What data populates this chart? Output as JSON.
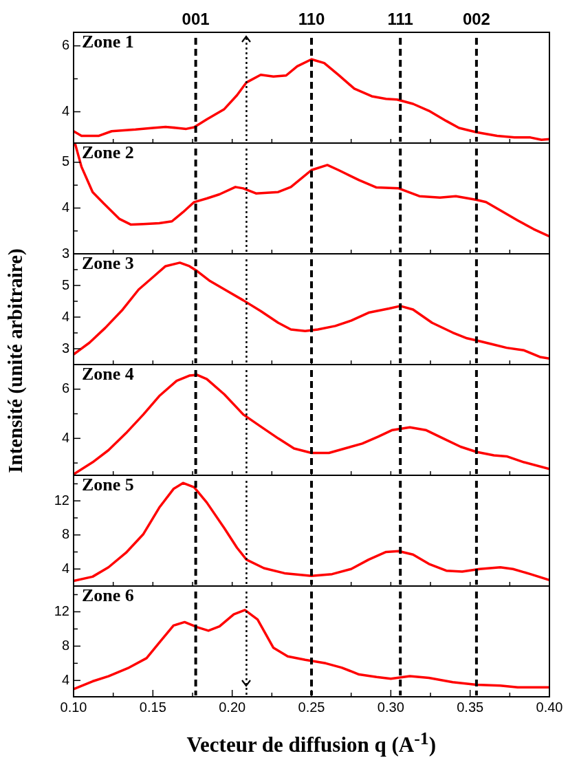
{
  "chart_data": [
    {
      "type": "line",
      "annotations": [
        "Zone 1",
        "001",
        "110",
        "111",
        "002"
      ],
      "tick_labels": "y",
      "xlim": [
        0.1,
        0.4
      ],
      "xticks": [
        {
          "value": 0.1,
          "label": null
        },
        {
          "value": 0.125,
          "label": null
        },
        {
          "value": 0.15,
          "label": null
        },
        {
          "value": 0.175,
          "label": null
        },
        {
          "value": 0.2,
          "label": null
        },
        {
          "value": 0.225,
          "label": null
        },
        {
          "value": 0.25,
          "label": null
        },
        {
          "value": 0.275,
          "label": null
        },
        {
          "value": 0.3,
          "label": null
        },
        {
          "value": 0.325,
          "label": null
        },
        {
          "value": 0.35,
          "label": null
        },
        {
          "value": 0.375,
          "label": null
        },
        {
          "value": 0.4,
          "label": null
        }
      ],
      "ylim": [
        3.05,
        6.41
      ],
      "yticks": [
        4,
        {
          "value": 5,
          "label": null
        },
        6
      ],
      "ref_lines": [
        {
          "axis": "x",
          "value": 0.177,
          "color": "#000000",
          "line_style": "dashed"
        },
        {
          "axis": "x",
          "value": 0.25,
          "color": "#000000",
          "line_style": "dashed"
        },
        {
          "axis": "x",
          "value": 0.306,
          "color": "#000000",
          "line_style": "dashed"
        },
        {
          "axis": "x",
          "value": 0.354,
          "color": "#000000",
          "line_style": "dashed"
        },
        {
          "axis": "x",
          "value": 0.209,
          "color": "#000000",
          "line_style": "dotted"
        }
      ],
      "series": [
        {
          "color": "#ff0000",
          "x": [
            0.1,
            0.105,
            0.116,
            0.124,
            0.139,
            0.15,
            0.158,
            0.165,
            0.171,
            0.176,
            0.184,
            0.195,
            0.203,
            0.209,
            0.218,
            0.226,
            0.234,
            0.241,
            0.25,
            0.258,
            0.267,
            0.277,
            0.288,
            0.297,
            0.304,
            0.314,
            0.324,
            0.335,
            0.343,
            0.354,
            0.367,
            0.378,
            0.388,
            0.395,
            0.4
          ],
          "values": [
            3.41,
            3.27,
            3.27,
            3.41,
            3.46,
            3.51,
            3.54,
            3.51,
            3.48,
            3.53,
            3.77,
            4.08,
            4.5,
            4.89,
            5.12,
            5.07,
            5.1,
            5.38,
            5.59,
            5.48,
            5.12,
            4.7,
            4.47,
            4.39,
            4.37,
            4.24,
            4.03,
            3.72,
            3.51,
            3.38,
            3.27,
            3.22,
            3.22,
            3.15,
            3.17
          ]
        }
      ]
    },
    {
      "type": "line",
      "annotations": [
        "Zone 2"
      ],
      "tick_labels": "y",
      "xlim": [
        0.1,
        0.4
      ],
      "xticks": [
        {
          "value": 0.1,
          "label": null
        },
        {
          "value": 0.125,
          "label": null
        },
        {
          "value": 0.15,
          "label": null
        },
        {
          "value": 0.175,
          "label": null
        },
        {
          "value": 0.2,
          "label": null
        },
        {
          "value": 0.225,
          "label": null
        },
        {
          "value": 0.25,
          "label": null
        },
        {
          "value": 0.275,
          "label": null
        },
        {
          "value": 0.3,
          "label": null
        },
        {
          "value": 0.325,
          "label": null
        },
        {
          "value": 0.35,
          "label": null
        },
        {
          "value": 0.375,
          "label": null
        },
        {
          "value": 0.4,
          "label": null
        }
      ],
      "ylim": [
        3,
        5.42
      ],
      "yticks": [
        3,
        {
          "value": 3.5,
          "label": null
        },
        4,
        {
          "value": 4.5,
          "label": null
        },
        5
      ],
      "ref_lines": [
        {
          "axis": "x",
          "value": 0.177,
          "color": "#000000",
          "line_style": "dashed"
        },
        {
          "axis": "x",
          "value": 0.25,
          "color": "#000000",
          "line_style": "dashed"
        },
        {
          "axis": "x",
          "value": 0.306,
          "color": "#000000",
          "line_style": "dashed"
        },
        {
          "axis": "x",
          "value": 0.354,
          "color": "#000000",
          "line_style": "dashed"
        },
        {
          "axis": "x",
          "value": 0.209,
          "color": "#000000",
          "line_style": "dotted"
        }
      ],
      "series": [
        {
          "color": "#ff0000",
          "x": [
            0.101,
            0.105,
            0.112,
            0.119,
            0.129,
            0.136,
            0.144,
            0.154,
            0.162,
            0.169,
            0.176,
            0.184,
            0.192,
            0.202,
            0.207,
            0.215,
            0.229,
            0.237,
            0.25,
            0.26,
            0.267,
            0.28,
            0.291,
            0.305,
            0.318,
            0.331,
            0.341,
            0.354,
            0.36,
            0.369,
            0.38,
            0.39,
            0.4
          ],
          "values": [
            5.4,
            4.9,
            4.35,
            4.1,
            3.76,
            3.64,
            3.65,
            3.67,
            3.71,
            3.91,
            4.13,
            4.21,
            4.3,
            4.46,
            4.43,
            4.32,
            4.35,
            4.46,
            4.83,
            4.94,
            4.83,
            4.61,
            4.45,
            4.43,
            4.26,
            4.23,
            4.26,
            4.18,
            4.13,
            3.95,
            3.73,
            3.54,
            3.38
          ]
        }
      ]
    },
    {
      "type": "line",
      "ylabel": "Intensité (unité arbitraire)",
      "annotations": [
        "Zone 3"
      ],
      "tick_labels": "y",
      "xlim": [
        0.1,
        0.4
      ],
      "xticks": [
        {
          "value": 0.1,
          "label": null
        },
        {
          "value": 0.125,
          "label": null
        },
        {
          "value": 0.15,
          "label": null
        },
        {
          "value": 0.175,
          "label": null
        },
        {
          "value": 0.2,
          "label": null
        },
        {
          "value": 0.225,
          "label": null
        },
        {
          "value": 0.25,
          "label": null
        },
        {
          "value": 0.275,
          "label": null
        },
        {
          "value": 0.3,
          "label": null
        },
        {
          "value": 0.325,
          "label": null
        },
        {
          "value": 0.35,
          "label": null
        },
        {
          "value": 0.375,
          "label": null
        },
        {
          "value": 0.4,
          "label": null
        }
      ],
      "ylim": [
        2.5,
        6
      ],
      "yticks": [
        3,
        {
          "value": 3.5,
          "label": null
        },
        4,
        {
          "value": 4.5,
          "label": null
        },
        5,
        {
          "value": 5.5,
          "label": null
        }
      ],
      "ref_lines": [
        {
          "axis": "x",
          "value": 0.177,
          "color": "#000000",
          "line_style": "dashed"
        },
        {
          "axis": "x",
          "value": 0.25,
          "color": "#000000",
          "line_style": "dashed"
        },
        {
          "axis": "x",
          "value": 0.306,
          "color": "#000000",
          "line_style": "dashed"
        },
        {
          "axis": "x",
          "value": 0.354,
          "color": "#000000",
          "line_style": "dashed"
        },
        {
          "axis": "x",
          "value": 0.209,
          "color": "#000000",
          "line_style": "dotted"
        }
      ],
      "series": [
        {
          "color": "#ff0000",
          "x": [
            0.1,
            0.11,
            0.12,
            0.131,
            0.141,
            0.15,
            0.158,
            0.167,
            0.173,
            0.178,
            0.186,
            0.197,
            0.207,
            0.218,
            0.229,
            0.237,
            0.246,
            0.254,
            0.265,
            0.275,
            0.286,
            0.299,
            0.306,
            0.314,
            0.326,
            0.339,
            0.348,
            0.356,
            0.364,
            0.373,
            0.384,
            0.394,
            0.4
          ],
          "values": [
            2.82,
            3.19,
            3.66,
            4.24,
            4.87,
            5.26,
            5.61,
            5.72,
            5.61,
            5.45,
            5.14,
            4.82,
            4.53,
            4.19,
            3.82,
            3.61,
            3.56,
            3.61,
            3.72,
            3.89,
            4.14,
            4.27,
            4.35,
            4.24,
            3.82,
            3.51,
            3.33,
            3.24,
            3.14,
            3.03,
            2.95,
            2.74,
            2.69
          ]
        }
      ]
    },
    {
      "type": "line",
      "annotations": [
        "Zone 4"
      ],
      "tick_labels": "y",
      "xlim": [
        0.1,
        0.4
      ],
      "xticks": [
        {
          "value": 0.1,
          "label": null
        },
        {
          "value": 0.125,
          "label": null
        },
        {
          "value": 0.15,
          "label": null
        },
        {
          "value": 0.175,
          "label": null
        },
        {
          "value": 0.2,
          "label": null
        },
        {
          "value": 0.225,
          "label": null
        },
        {
          "value": 0.25,
          "label": null
        },
        {
          "value": 0.275,
          "label": null
        },
        {
          "value": 0.3,
          "label": null
        },
        {
          "value": 0.325,
          "label": null
        },
        {
          "value": 0.35,
          "label": null
        },
        {
          "value": 0.375,
          "label": null
        },
        {
          "value": 0.4,
          "label": null
        }
      ],
      "ylim": [
        2.5,
        7
      ],
      "yticks": [
        {
          "value": 3,
          "label": null
        },
        4,
        {
          "value": 5,
          "label": null
        },
        6
      ],
      "ref_lines": [
        {
          "axis": "x",
          "value": 0.177,
          "color": "#000000",
          "line_style": "dashed"
        },
        {
          "axis": "x",
          "value": 0.25,
          "color": "#000000",
          "line_style": "dashed"
        },
        {
          "axis": "x",
          "value": 0.306,
          "color": "#000000",
          "line_style": "dashed"
        },
        {
          "axis": "x",
          "value": 0.354,
          "color": "#000000",
          "line_style": "dashed"
        },
        {
          "axis": "x",
          "value": 0.209,
          "color": "#000000",
          "line_style": "dotted"
        }
      ],
      "series": [
        {
          "color": "#ff0000",
          "x": [
            0.1,
            0.112,
            0.122,
            0.133,
            0.144,
            0.154,
            0.165,
            0.173,
            0.178,
            0.184,
            0.195,
            0.207,
            0.218,
            0.229,
            0.239,
            0.25,
            0.261,
            0.271,
            0.282,
            0.292,
            0.301,
            0.312,
            0.322,
            0.333,
            0.344,
            0.354,
            0.365,
            0.373,
            0.384,
            0.4
          ],
          "values": [
            2.54,
            3.03,
            3.52,
            4.21,
            4.97,
            5.72,
            6.34,
            6.55,
            6.58,
            6.41,
            5.79,
            4.97,
            4.48,
            4,
            3.59,
            3.41,
            3.41,
            3.59,
            3.79,
            4.07,
            4.34,
            4.45,
            4.34,
            4,
            3.66,
            3.45,
            3.31,
            3.27,
            3.03,
            2.76
          ]
        }
      ]
    },
    {
      "type": "line",
      "annotations": [
        "Zone 5"
      ],
      "tick_labels": "y",
      "xlim": [
        0.1,
        0.4
      ],
      "xticks": [
        {
          "value": 0.1,
          "label": null
        },
        {
          "value": 0.125,
          "label": null
        },
        {
          "value": 0.15,
          "label": null
        },
        {
          "value": 0.175,
          "label": null
        },
        {
          "value": 0.2,
          "label": null
        },
        {
          "value": 0.225,
          "label": null
        },
        {
          "value": 0.25,
          "label": null
        },
        {
          "value": 0.275,
          "label": null
        },
        {
          "value": 0.3,
          "label": null
        },
        {
          "value": 0.325,
          "label": null
        },
        {
          "value": 0.35,
          "label": null
        },
        {
          "value": 0.375,
          "label": null
        },
        {
          "value": 0.4,
          "label": null
        }
      ],
      "ylim": [
        2,
        15
      ],
      "yticks": [
        4,
        {
          "value": 6,
          "label": null
        },
        8,
        {
          "value": 10,
          "label": null
        },
        12,
        {
          "value": 14,
          "label": null
        }
      ],
      "ref_lines": [
        {
          "axis": "x",
          "value": 0.177,
          "color": "#000000",
          "line_style": "dashed"
        },
        {
          "axis": "x",
          "value": 0.25,
          "color": "#000000",
          "line_style": "dashed"
        },
        {
          "axis": "x",
          "value": 0.306,
          "color": "#000000",
          "line_style": "dashed"
        },
        {
          "axis": "x",
          "value": 0.354,
          "color": "#000000",
          "line_style": "dashed"
        },
        {
          "axis": "x",
          "value": 0.209,
          "color": "#000000",
          "line_style": "dotted"
        }
      ],
      "series": [
        {
          "color": "#ff0000",
          "x": [
            0.1,
            0.112,
            0.122,
            0.133,
            0.144,
            0.154,
            0.163,
            0.169,
            0.176,
            0.184,
            0.195,
            0.203,
            0.209,
            0.22,
            0.233,
            0.25,
            0.263,
            0.275,
            0.286,
            0.297,
            0.305,
            0.314,
            0.324,
            0.335,
            0.345,
            0.356,
            0.369,
            0.377,
            0.388,
            0.4
          ],
          "values": [
            2.6,
            3.1,
            4.2,
            5.9,
            8.1,
            11.2,
            13.4,
            14.1,
            13.6,
            11.8,
            8.8,
            6.5,
            5.1,
            4.1,
            3.5,
            3.2,
            3.4,
            4,
            5.1,
            6,
            6.1,
            5.7,
            4.6,
            3.8,
            3.7,
            4,
            4.2,
            4,
            3.4,
            2.7
          ]
        }
      ]
    },
    {
      "type": "line",
      "annotations": [
        "Zone 6"
      ],
      "xlabel": "Vecteur de diffusion q (A$^{-1}$)",
      "xlim": [
        0.1,
        0.4
      ],
      "xticks": [
        {
          "value": 0.1,
          "label": "0.10"
        },
        {
          "value": 0.125,
          "label": null
        },
        {
          "value": 0.15,
          "label": "0.15"
        },
        {
          "value": 0.175,
          "label": null
        },
        {
          "value": 0.2,
          "label": "0.20"
        },
        {
          "value": 0.225,
          "label": null
        },
        {
          "value": 0.25,
          "label": "0.25"
        },
        {
          "value": 0.275,
          "label": null
        },
        {
          "value": 0.3,
          "label": "0.30"
        },
        {
          "value": 0.325,
          "label": null
        },
        {
          "value": 0.35,
          "label": "0.35"
        },
        {
          "value": 0.375,
          "label": null
        },
        {
          "value": 0.4,
          "label": "0.40"
        }
      ],
      "ylim": [
        2.1,
        15
      ],
      "yticks": [
        4,
        {
          "value": 6,
          "label": null
        },
        8,
        {
          "value": 10,
          "label": null
        },
        12,
        {
          "value": 14,
          "label": null
        }
      ],
      "ref_lines": [
        {
          "axis": "x",
          "value": 0.177,
          "color": "#000000",
          "line_style": "dashed"
        },
        {
          "axis": "x",
          "value": 0.25,
          "color": "#000000",
          "line_style": "dashed"
        },
        {
          "axis": "x",
          "value": 0.306,
          "color": "#000000",
          "line_style": "dashed"
        },
        {
          "axis": "x",
          "value": 0.354,
          "color": "#000000",
          "line_style": "dashed"
        },
        {
          "axis": "x",
          "value": 0.209,
          "color": "#000000",
          "line_style": "dotted"
        }
      ],
      "series": [
        {
          "color": "#ff0000",
          "x": [
            0.1,
            0.112,
            0.122,
            0.135,
            0.146,
            0.154,
            0.163,
            0.17,
            0.178,
            0.185,
            0.192,
            0.201,
            0.208,
            0.216,
            0.226,
            0.235,
            0.246,
            0.259,
            0.269,
            0.28,
            0.291,
            0.3,
            0.312,
            0.324,
            0.339,
            0.354,
            0.369,
            0.38,
            0.4
          ],
          "values": [
            3,
            3.9,
            4.5,
            5.5,
            6.6,
            8.4,
            10.4,
            10.8,
            10.2,
            9.8,
            10.3,
            11.7,
            12.2,
            11.1,
            7.8,
            6.8,
            6.4,
            6,
            5.5,
            4.7,
            4.4,
            4.2,
            4.5,
            4.3,
            3.8,
            3.5,
            3.4,
            3.2,
            3.2
          ]
        }
      ]
    }
  ]
}
